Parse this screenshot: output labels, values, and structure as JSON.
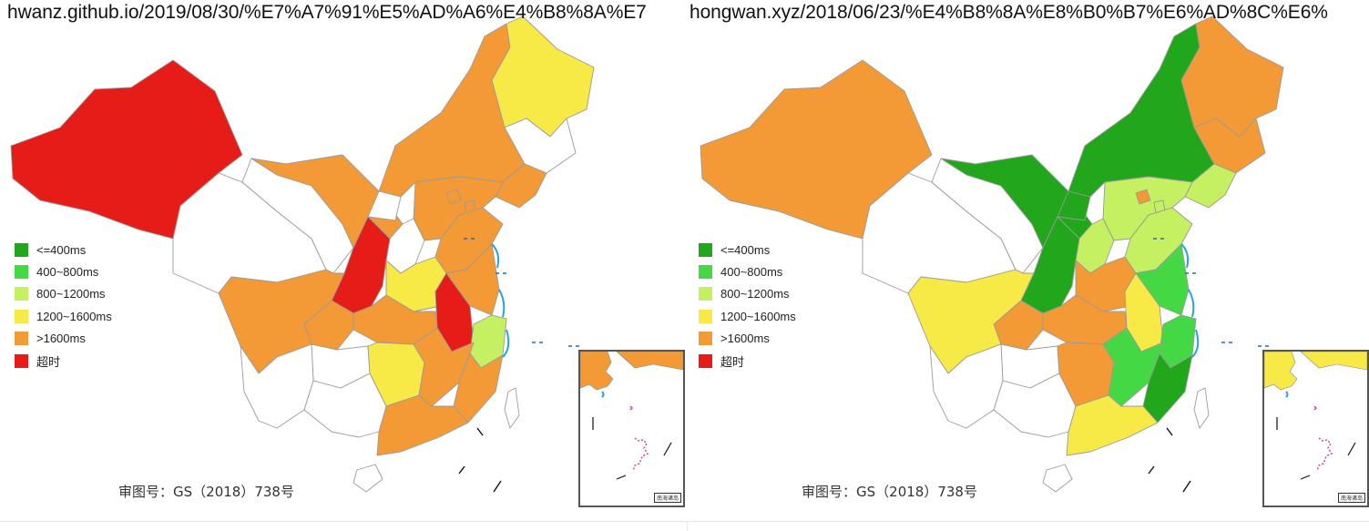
{
  "legend": [
    {
      "label": "<=400ms",
      "color": "#22a61c"
    },
    {
      "label": "400~800ms",
      "color": "#45d845"
    },
    {
      "label": "800~1200ms",
      "color": "#c4f062"
    },
    {
      "label": "1200~1600ms",
      "color": "#f7e946"
    },
    {
      "label": ">1600ms",
      "color": "#f39a36"
    },
    {
      "label": "超时",
      "color": "#e51c17"
    }
  ],
  "uncolored": "#ffffff",
  "panels": [
    {
      "url": "hwanz.github.io/2019/08/30/%E7%A7%91%E5%AD%A6%E4%B8%8A%E7",
      "approval": "审图号：GS（2018）738号",
      "inset_caption": "南海诸岛",
      "province_ping_class": {
        "xinjiang": 5,
        "xizang": -1,
        "qinghai": -1,
        "gansu": 4,
        "neimenggu": 4,
        "heilongjiang": 3,
        "jilin": -1,
        "liaoning": 4,
        "hebei": 4,
        "beijing": 4,
        "tianjin": 4,
        "shanxi": -1,
        "shaanxi": 5,
        "ningxia": -1,
        "henan": 3,
        "shandong": 4,
        "jiangsu": 4,
        "anhui": 5,
        "shanghai": 2,
        "zhejiang": 2,
        "hubei": 4,
        "chongqing": 4,
        "sichuan": 4,
        "guizhou": -1,
        "yunnan": -1,
        "hunan": 3,
        "jiangxi": 4,
        "fujian": 4,
        "guangdong": 4,
        "guangxi": -1,
        "hainan": -1,
        "taiwan": -1
      }
    },
    {
      "url": "hongwan.xyz/2018/06/23/%E4%B8%8A%E8%B0%B7%E6%AD%8C%E6%",
      "approval": "审图号：GS（2018）738号",
      "inset_caption": "南海诸岛",
      "province_ping_class": {
        "xinjiang": 4,
        "xizang": -1,
        "qinghai": -1,
        "gansu": 0,
        "neimenggu": 0,
        "heilongjiang": 4,
        "jilin": 4,
        "liaoning": 2,
        "hebei": 2,
        "beijing": 4,
        "tianjin": 2,
        "shanxi": 2,
        "shaanxi": 0,
        "ningxia": 0,
        "henan": 4,
        "shandong": 2,
        "jiangsu": 1,
        "anhui": 3,
        "shanghai": 1,
        "zhejiang": 1,
        "hubei": 4,
        "chongqing": 4,
        "sichuan": 3,
        "guizhou": -1,
        "yunnan": -1,
        "hunan": 4,
        "jiangxi": 1,
        "fujian": 0,
        "guangdong": 3,
        "guangxi": -1,
        "hainan": -1,
        "taiwan": -1
      }
    }
  ]
}
